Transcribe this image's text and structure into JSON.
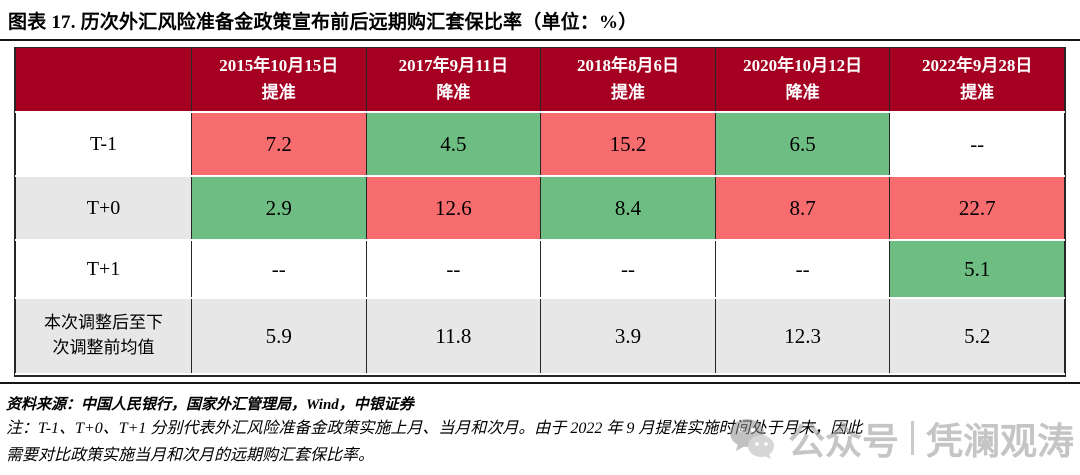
{
  "figure": {
    "title": "图表 17. 历次外汇风险准备金政策宣布前后远期购汇套保比率（单位：%）",
    "source": "资料来源：中国人民银行，国家外汇管理局，Wind，中银证券",
    "note_line1": "注：T-1、T+0、T+1 分别代表外汇风险准备金政策实施上月、当月和次月。由于 2022 年 9 月提准实施时间处于月末，因此",
    "note_line2": "需要对比政策实施当月和次月的远期购汇套保比率。"
  },
  "watermark": {
    "icon": "wechat-icon",
    "account_label": "公众号",
    "name": "凭澜观涛"
  },
  "colors": {
    "header_bg": "#A50021",
    "header_text": "#FFFFFF",
    "red_cell_bg": "#F76C6E",
    "green_cell_bg": "#6EBE84",
    "zebra_bg": "#E7E7E7",
    "plain_bg": "#FFFFFF"
  },
  "chart_data": {
    "type": "table",
    "title": "历次外汇风险准备金政策宣布前后远期购汇套保比率",
    "unit": "%",
    "columns": [
      {
        "date": "2015年10月15日",
        "action": "提准"
      },
      {
        "date": "2017年9月11日",
        "action": "降准"
      },
      {
        "date": "2018年8月6日",
        "action": "提准"
      },
      {
        "date": "2020年10月12日",
        "action": "降准"
      },
      {
        "date": "2022年9月28日",
        "action": "提准"
      }
    ],
    "rows": [
      {
        "label": "T-1",
        "zebra": false,
        "cells": [
          {
            "value": "7.2",
            "bg": "red"
          },
          {
            "value": "4.5",
            "bg": "green"
          },
          {
            "value": "15.2",
            "bg": "red"
          },
          {
            "value": "6.5",
            "bg": "green"
          },
          {
            "value": "--",
            "bg": "none"
          }
        ]
      },
      {
        "label": "T+0",
        "zebra": true,
        "cells": [
          {
            "value": "2.9",
            "bg": "green"
          },
          {
            "value": "12.6",
            "bg": "red"
          },
          {
            "value": "8.4",
            "bg": "green"
          },
          {
            "value": "8.7",
            "bg": "red"
          },
          {
            "value": "22.7",
            "bg": "red"
          }
        ]
      },
      {
        "label": "T+1",
        "zebra": false,
        "cells": [
          {
            "value": "--",
            "bg": "none"
          },
          {
            "value": "--",
            "bg": "none"
          },
          {
            "value": "--",
            "bg": "none"
          },
          {
            "value": "--",
            "bg": "none"
          },
          {
            "value": "5.1",
            "bg": "green"
          }
        ]
      },
      {
        "label": "本次调整后至下次调整前均值",
        "zebra": true,
        "cells": [
          {
            "value": "5.9",
            "bg": "none"
          },
          {
            "value": "11.8",
            "bg": "none"
          },
          {
            "value": "3.9",
            "bg": "none"
          },
          {
            "value": "12.3",
            "bg": "none"
          },
          {
            "value": "5.2",
            "bg": "none"
          }
        ]
      }
    ]
  }
}
